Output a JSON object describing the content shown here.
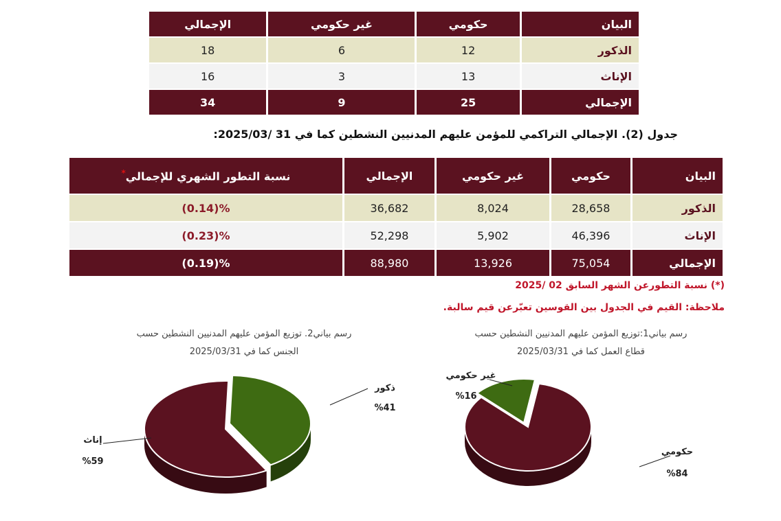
{
  "table1": {
    "headers": [
      "البيان",
      "حكومي",
      "غير حكومي",
      "الإجمالي"
    ],
    "rows": [
      {
        "label": "الذكور",
        "values": [
          "12",
          "6",
          "18"
        ]
      },
      {
        "label": "الإناث",
        "values": [
          "13",
          "3",
          "16"
        ]
      },
      {
        "label": "الإجمالي",
        "values": [
          "25",
          "9",
          "34"
        ]
      }
    ]
  },
  "caption2": "جدول (2). الإجمالي التراكمي للمؤمن عليهم المدنيين النشطين كما في 31 /2025/03:",
  "table2": {
    "headers": [
      "البيان",
      "حكومي",
      "غير حكومي",
      "الإجمالي",
      "نسبة التطور الشهري للإجمالي"
    ],
    "header_star": "*",
    "rows": [
      {
        "label": "الذكور",
        "values": [
          "28,658",
          "8,024",
          "36,682",
          "%(0.14)"
        ]
      },
      {
        "label": "الإناث",
        "values": [
          "46,396",
          "5,902",
          "52,298",
          "%(0.23)"
        ]
      },
      {
        "label": "الإجمالي",
        "values": [
          "75,054",
          "13,926",
          "88,980",
          "%(0.19)"
        ]
      }
    ]
  },
  "notes": {
    "footnote": "(*) نسبة التطورعن الشهر السابق 02 /2025",
    "remark": "ملاحظة: القيم في الجدول بين القوسين تعبّرعن قيم سالبة."
  },
  "chart_data": [
    {
      "type": "pie",
      "title_line1": "رسم بياني1:توزيع المؤمن عليهم المدنيين النشطين حسب",
      "title_line2": "قطاع العمل كما في 2025/03/31",
      "categories": [
        "حكومي",
        "غير حكومي"
      ],
      "values": [
        84,
        16
      ],
      "value_labels": [
        "%84",
        "%16"
      ],
      "colors": [
        "#5b1220",
        "#3e6b12"
      ]
    },
    {
      "type": "pie",
      "title_line1": "رسم بياني2. توزيع المؤمن عليهم المدنيين النشطين حسب",
      "title_line2": "الجنس كما في 2025/03/31",
      "categories": [
        "ذكور",
        "إناث"
      ],
      "values": [
        41,
        59
      ],
      "value_labels": [
        "%41",
        "%59"
      ],
      "colors": [
        "#3e6b12",
        "#5b1220"
      ]
    }
  ]
}
